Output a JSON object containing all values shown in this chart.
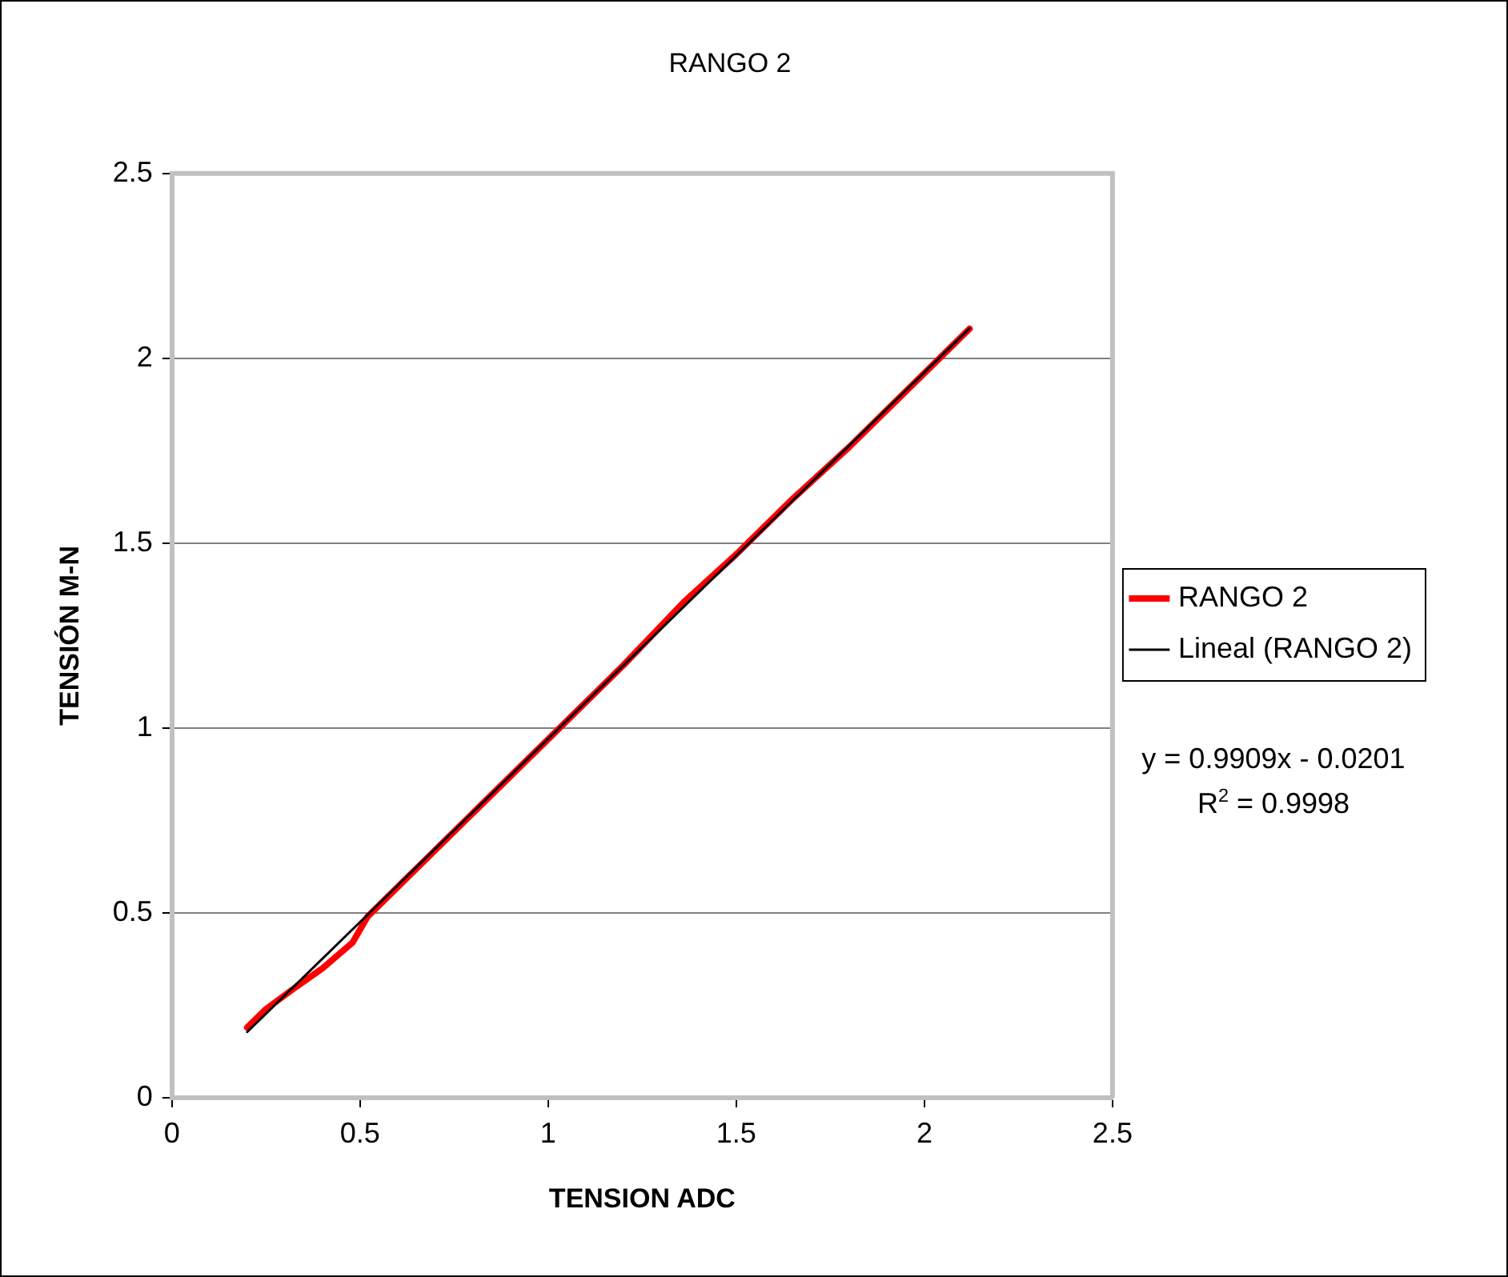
{
  "chart_data": {
    "type": "line",
    "title": "RANGO 2",
    "xlabel": "TENSION ADC",
    "ylabel": "TENSIÓN M-N",
    "x": [
      0.2,
      0.25,
      0.33,
      0.4,
      0.48,
      0.52,
      0.6,
      0.8,
      1.0,
      1.2,
      1.36,
      1.5,
      1.55,
      1.65,
      1.8,
      2.0,
      2.12
    ],
    "series": [
      {
        "name": "RANGO 2",
        "color": "#ff0000",
        "values": [
          0.19,
          0.24,
          0.3,
          0.35,
          0.42,
          0.49,
          0.57,
          0.77,
          0.97,
          1.17,
          1.34,
          1.47,
          1.52,
          1.62,
          1.76,
          1.96,
          2.08
        ]
      },
      {
        "name": "Lineal (RANGO 2)",
        "color": "#000000",
        "x": [
          0.2,
          2.12
        ],
        "values": [
          0.178,
          2.081
        ]
      }
    ],
    "xlim": [
      0,
      2.5
    ],
    "xticks": [
      0,
      0.5,
      1,
      1.5,
      2,
      2.5
    ],
    "ylim": [
      0,
      2.5
    ],
    "yticks": [
      0,
      0.5,
      1,
      1.5,
      2,
      2.5
    ],
    "grid": "y",
    "legend": "right",
    "marker": "none",
    "annotations": [
      "y = 0.9909x - 0.0201",
      "R$^{2}$ = 0.9998"
    ]
  }
}
